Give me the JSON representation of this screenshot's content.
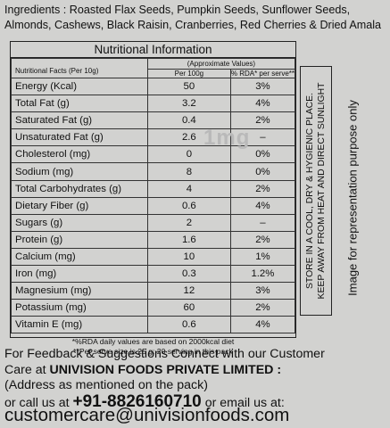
{
  "ingredients": {
    "line1": "Ingredients : Roasted Flax Seeds, Pumpkin Seeds, Sunflower Seeds,",
    "line2": "Almonds, Cashews, Black Raisin, Cranberries, Red Cherries & Dried Amala"
  },
  "nutrition": {
    "title": "Nutritional Information",
    "header_name": "Nutritional Facts (Per 10g)",
    "header_approx": "(Approximate Values)",
    "header_per100": "Per 100g",
    "header_rda": "% RDA* per serve**",
    "rows": [
      {
        "name": "Energy (Kcal)",
        "per100": "50",
        "rda": "3%"
      },
      {
        "name": "Total Fat (g)",
        "per100": "3.2",
        "rda": "4%"
      },
      {
        "name": "Saturated Fat (g)",
        "per100": "0.4",
        "rda": "2%"
      },
      {
        "name": "Unsaturated Fat (g)",
        "per100": "2.6",
        "rda": "–"
      },
      {
        "name": "Cholesterol (mg)",
        "per100": "0",
        "rda": "0%"
      },
      {
        "name": "Sodium (mg)",
        "per100": "8",
        "rda": "0%"
      },
      {
        "name": "Total Carbohydrates (g)",
        "per100": "4",
        "rda": "2%"
      },
      {
        "name": "Dietary Fiber (g)",
        "per100": "0.6",
        "rda": "4%"
      },
      {
        "name": "Sugars (g)",
        "per100": "2",
        "rda": "–"
      },
      {
        "name": "Protein (g)",
        "per100": "1.6",
        "rda": "2%"
      },
      {
        "name": "Calcium (mg)",
        "per100": "10",
        "rda": "1%"
      },
      {
        "name": "Iron (mg)",
        "per100": "0.3",
        "rda": "1.2%"
      },
      {
        "name": "Magnesium (mg)",
        "per100": "12",
        "rda": "3%"
      },
      {
        "name": "Potassium (mg)",
        "per100": "60",
        "rda": "2%"
      },
      {
        "name": "Vitamin E (mg)",
        "per100": "0.6",
        "rda": "4%"
      }
    ],
    "footnote1": "*%RDA daily values are based on 2000kcal diet",
    "footnote2": "**Per serve size is 25 g: 20 serving in this pack"
  },
  "watermark": "1mg",
  "storage": {
    "line1": "STORE IN A COOL, DRY & HYGIENIC PLACE.",
    "line2": "KEEP AWAY FROM HEAT AND DIRECT SUNLIGHT"
  },
  "disclaimer": "Image for representation purpose only",
  "feedback": {
    "line1": "For Feedback & Suggestions Connect with our Customer",
    "care_at": "Care at",
    "company": "UNIVISION FOODS PRIVATE LIMITED :",
    "line3": "(Address as mentioned on the pack)",
    "call_prefix": "or call us at",
    "phone": "+91-8826160710",
    "email_prefix": "or email us at:",
    "email": "customercare@univisionfoods.com"
  }
}
